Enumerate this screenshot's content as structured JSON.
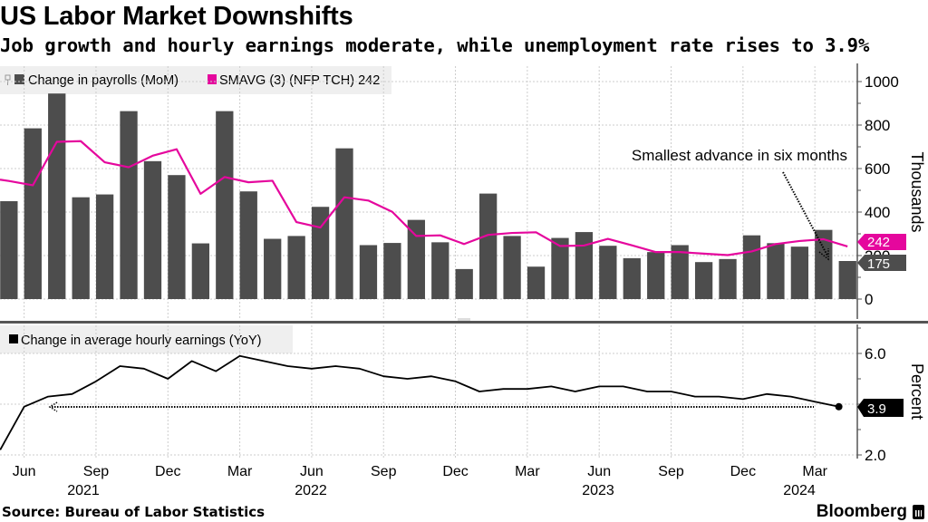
{
  "header": {
    "title": "US Labor Market Downshifts",
    "subtitle": "Job growth and hourly earnings moderate, while unemployment rate rises to 3.9%"
  },
  "footer": {
    "source": "Source: Bureau of Labor Statistics",
    "brand": "Bloomberg"
  },
  "colors": {
    "bars": "#4d4d4d",
    "smavg": "#e5079d",
    "earnings": "#000000",
    "grid": "#cccccc",
    "legend_bg": "#efefef"
  },
  "x_axis": {
    "month_labels": [
      "Jun",
      "Sep",
      "Dec",
      "Mar",
      "Jun",
      "Sep",
      "Dec",
      "Mar",
      "Jun",
      "Sep",
      "Dec",
      "Mar"
    ],
    "year_labels": [
      "2021",
      "2022",
      "2023",
      "2024"
    ]
  },
  "chart_data": [
    {
      "type": "bar",
      "panel": "top",
      "legend": [
        "Change in payrolls (MoM)",
        "SMAVG (3) (NFP TCH) 242"
      ],
      "ylabel": "Thousands",
      "ylim": [
        0,
        1000
      ],
      "y_ticks": [
        "0",
        "200",
        "400",
        "600",
        "800",
        "1000"
      ],
      "grid": true,
      "annotation": "Smallest advance in six months",
      "end_labels": {
        "smavg": "242",
        "payrolls": "175"
      },
      "x": [
        "2021-05",
        "2021-06",
        "2021-07",
        "2021-08",
        "2021-09",
        "2021-10",
        "2021-11",
        "2021-12",
        "2022-01",
        "2022-02",
        "2022-03",
        "2022-04",
        "2022-05",
        "2022-06",
        "2022-07",
        "2022-08",
        "2022-09",
        "2022-10",
        "2022-11",
        "2022-12",
        "2023-01",
        "2023-02",
        "2023-03",
        "2023-04",
        "2023-05",
        "2023-06",
        "2023-07",
        "2023-08",
        "2023-09",
        "2023-10",
        "2023-11",
        "2023-12",
        "2024-01",
        "2024-02",
        "2024-03",
        "2024-04"
      ],
      "series": [
        {
          "name": "Change in payrolls (MoM)",
          "type": "bar",
          "values": [
            450,
            785,
            945,
            468,
            481,
            864,
            634,
            570,
            256,
            864,
            495,
            277,
            290,
            424,
            693,
            248,
            258,
            364,
            261,
            138,
            485,
            290,
            149,
            281,
            308,
            245,
            188,
            216,
            248,
            170,
            184,
            293,
            257,
            241,
            318,
            175
          ]
        },
        {
          "name": "SMAVG (3) (NFP TCH)",
          "type": "line",
          "values": [
            543,
            523,
            723,
            726,
            629,
            606,
            659,
            689,
            484,
            561,
            537,
            544,
            354,
            329,
            468,
            453,
            401,
            290,
            293,
            253,
            295,
            304,
            307,
            244,
            246,
            277,
            247,
            216,
            216,
            209,
            202,
            219,
            253,
            267,
            275,
            242
          ]
        }
      ]
    },
    {
      "type": "line",
      "panel": "bottom",
      "legend": [
        "Change in average hourly earnings (YoY)"
      ],
      "ylabel": "Percent",
      "ylim": [
        2.0,
        7.0
      ],
      "y_ticks": [
        "2.0",
        "6.0"
      ],
      "grid": true,
      "end_labels": {
        "earnings": "3.9"
      },
      "x": [
        "2021-05",
        "2021-06",
        "2021-07",
        "2021-08",
        "2021-09",
        "2021-10",
        "2021-11",
        "2021-12",
        "2022-01",
        "2022-02",
        "2022-03",
        "2022-04",
        "2022-05",
        "2022-06",
        "2022-07",
        "2022-08",
        "2022-09",
        "2022-10",
        "2022-11",
        "2022-12",
        "2023-01",
        "2023-02",
        "2023-03",
        "2023-04",
        "2023-05",
        "2023-06",
        "2023-07",
        "2023-08",
        "2023-09",
        "2023-10",
        "2023-11",
        "2023-12",
        "2024-01",
        "2024-02",
        "2024-03",
        "2024-04"
      ],
      "series": [
        {
          "name": "Change in average hourly earnings (YoY)",
          "values": [
            2.2,
            3.9,
            4.3,
            4.4,
            4.9,
            5.5,
            5.4,
            5.0,
            5.7,
            5.3,
            5.9,
            5.7,
            5.5,
            5.4,
            5.5,
            5.4,
            5.1,
            5.0,
            5.1,
            4.9,
            4.5,
            4.6,
            4.6,
            4.7,
            4.5,
            4.7,
            4.7,
            4.5,
            4.5,
            4.3,
            4.3,
            4.2,
            4.4,
            4.3,
            4.1,
            3.9
          ]
        }
      ]
    }
  ]
}
